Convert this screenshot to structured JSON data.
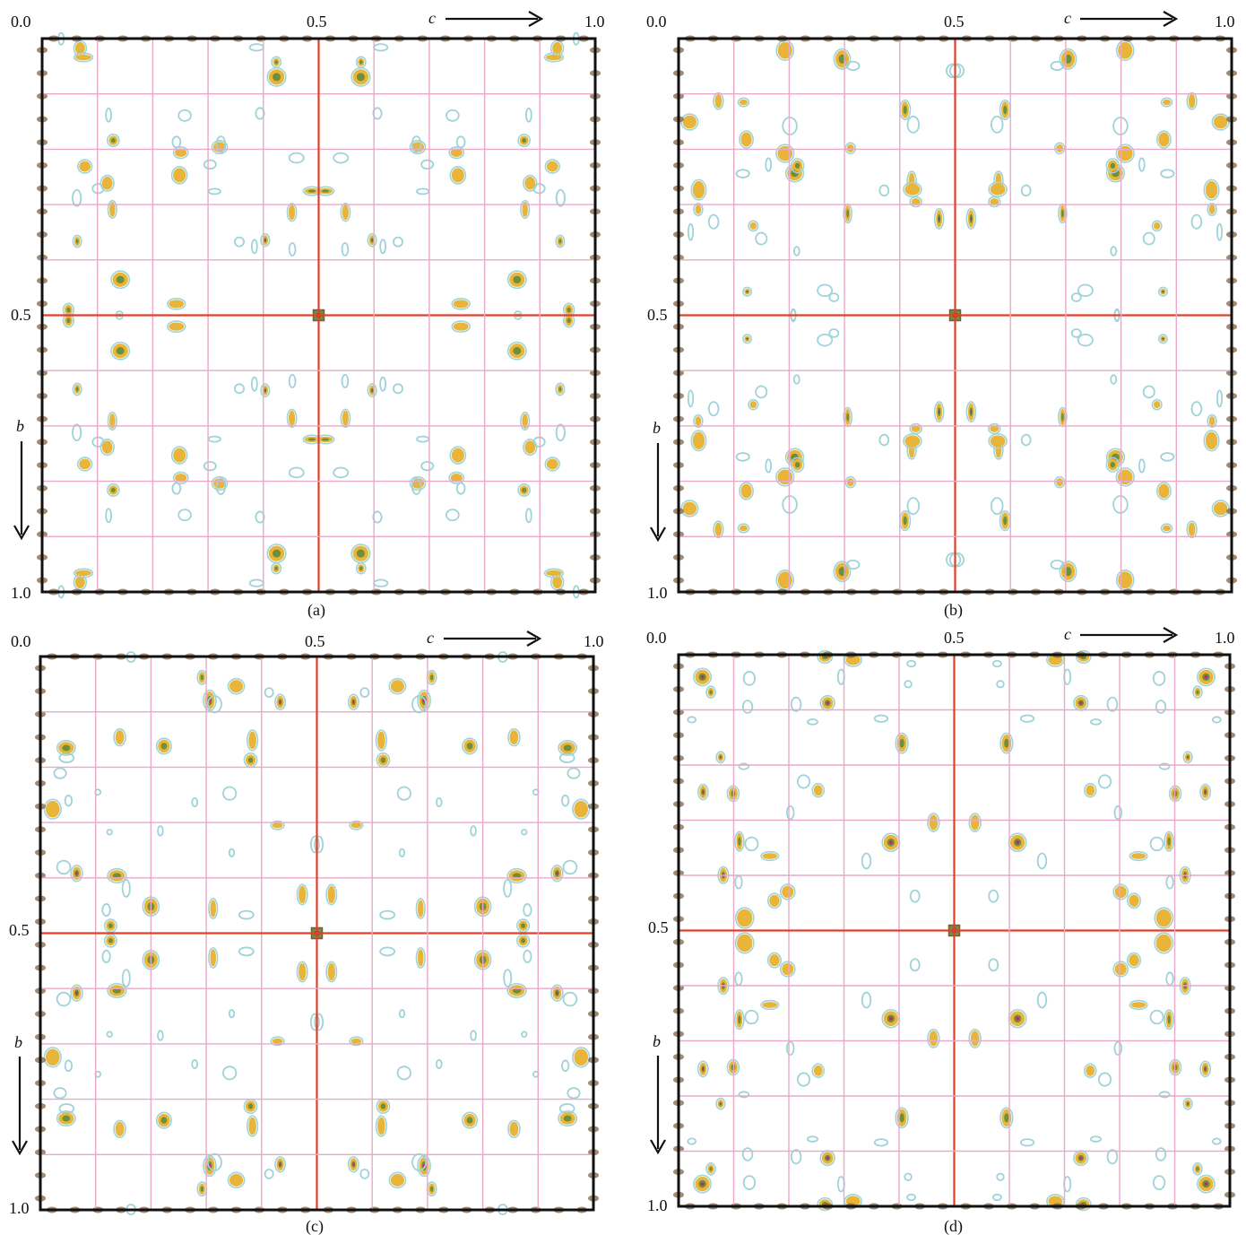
{
  "figure": {
    "panels": [
      {
        "id": "a",
        "caption": "(a)"
      },
      {
        "id": "b",
        "caption": "(b)"
      },
      {
        "id": "c",
        "caption": "(c)"
      },
      {
        "id": "d",
        "caption": "(d)"
      }
    ],
    "axis": {
      "origin_label": "0.0",
      "half_label": "0.5",
      "end_label": "1.0",
      "horizontal_axis_name": "c",
      "vertical_axis_name": "b"
    },
    "colors": {
      "grid": "#e9a9c9",
      "center_lines": "#e0402a",
      "frame": "#111111",
      "contour_low": "#9fd3d9",
      "contour_mid": "#e8b53a",
      "contour_high": "#6f8f3a",
      "contour_peak": "#b0306a",
      "border_blob": "#7a5a3a"
    }
  }
}
